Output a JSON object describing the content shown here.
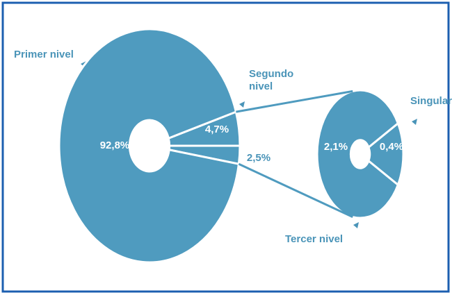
{
  "chart_data": {
    "type": "pie_of_pie",
    "color": "#4f9bbf",
    "categories": [
      "Primer nivel",
      "Segundo nivel",
      null
    ],
    "values": [
      92.8,
      4.7,
      2.5
    ],
    "value_labels": [
      "92,8%",
      "4,7%",
      "2,5%"
    ],
    "secondary": {
      "categories": [
        "Tercer nivel",
        "Singular"
      ],
      "values": [
        2.1,
        0.4
      ],
      "value_labels": [
        "2,1%",
        "0,4%"
      ]
    }
  }
}
